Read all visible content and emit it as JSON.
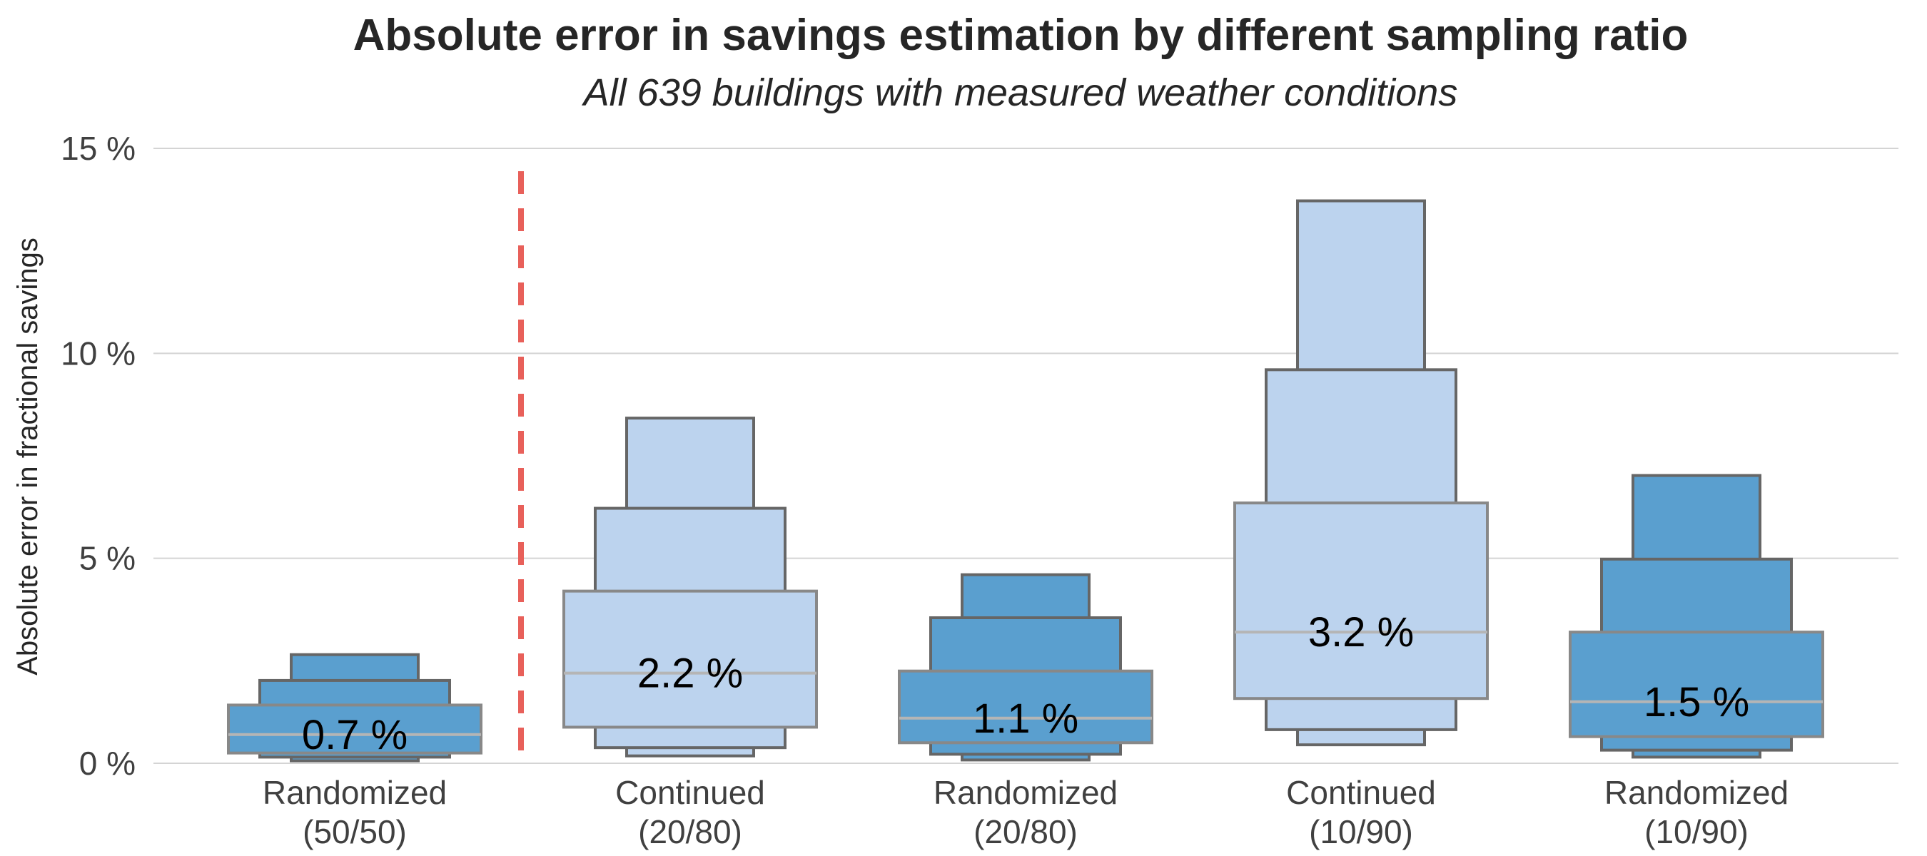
{
  "chart_data": {
    "type": "boxen",
    "title": "Absolute error in savings estimation by different sampling ratio",
    "subtitle": "All 639 buildings with measured weather conditions",
    "xlabel": "",
    "ylabel": "Absolute error in fractional savings",
    "ylim": [
      0,
      15
    ],
    "yticks": [
      0,
      5,
      10,
      15
    ],
    "ytick_labels": [
      "0 %",
      "5 %",
      "10 %",
      "15 %"
    ],
    "grid": true,
    "divider_after_category": 0,
    "colors": {
      "randomized": "#5a9fcf",
      "continued": "#bcd3ee",
      "divider": "#e8605a",
      "grid": "#d4d4d4",
      "edge": "#666666",
      "median": "#b5b5b5"
    },
    "categories": [
      {
        "label_line1": "Randomized",
        "label_line2": "(50/50)",
        "group": "randomized",
        "median": 0.7,
        "median_label": "0.7 %",
        "boxes": [
          {
            "low": 0.25,
            "high": 1.42
          },
          {
            "low": 0.15,
            "high": 2.02
          },
          {
            "low": 0.06,
            "high": 2.65
          }
        ]
      },
      {
        "label_line1": "Continued",
        "label_line2": "(20/80)",
        "group": "continued",
        "median": 2.2,
        "median_label": "2.2 %",
        "boxes": [
          {
            "low": 0.88,
            "high": 4.2
          },
          {
            "low": 0.38,
            "high": 6.22
          },
          {
            "low": 0.18,
            "high": 8.42
          }
        ]
      },
      {
        "label_line1": "Randomized",
        "label_line2": "(20/80)",
        "group": "randomized",
        "median": 1.1,
        "median_label": "1.1 %",
        "boxes": [
          {
            "low": 0.5,
            "high": 2.25
          },
          {
            "low": 0.22,
            "high": 3.55
          },
          {
            "low": 0.08,
            "high": 4.6
          }
        ]
      },
      {
        "label_line1": "Continued",
        "label_line2": "(10/90)",
        "group": "continued",
        "median": 3.2,
        "median_label": "3.2 %",
        "boxes": [
          {
            "low": 1.58,
            "high": 6.35
          },
          {
            "low": 0.82,
            "high": 9.6
          },
          {
            "low": 0.45,
            "high": 13.72
          }
        ]
      },
      {
        "label_line1": "Randomized",
        "label_line2": "(10/90)",
        "group": "randomized",
        "median": 1.5,
        "median_label": "1.5 %",
        "boxes": [
          {
            "low": 0.65,
            "high": 3.2
          },
          {
            "low": 0.32,
            "high": 4.98
          },
          {
            "low": 0.15,
            "high": 7.02
          }
        ]
      }
    ]
  }
}
